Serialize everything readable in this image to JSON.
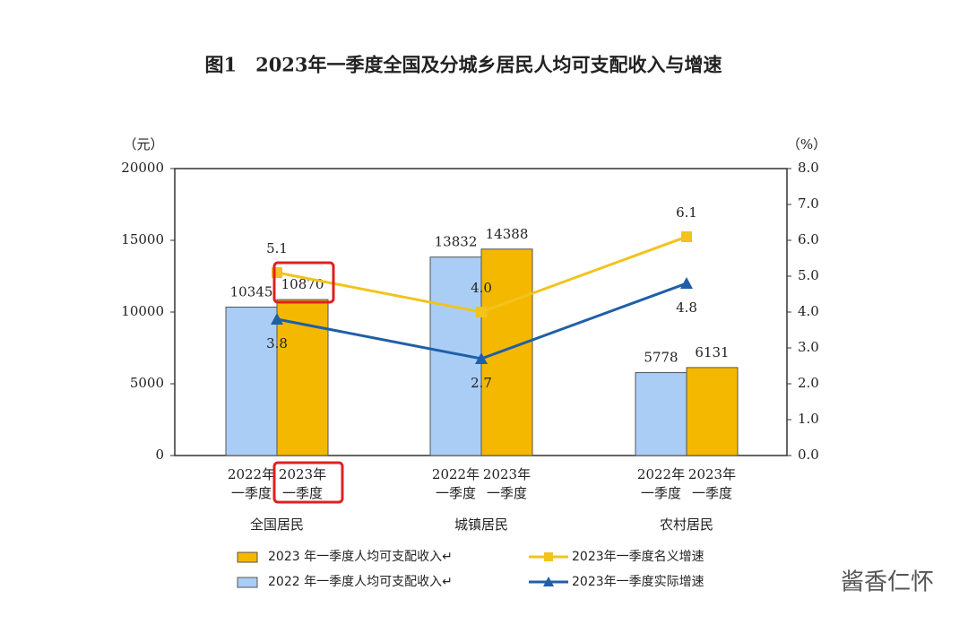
{
  "chart_data": {
    "type": "bar_line",
    "title": "图1　2023年一季度全国及分城乡居民人均可支配收入与增速",
    "y_label": "（元）",
    "y2_label": "（%）",
    "categories": [
      "全国居民",
      "城镇居民",
      "农村居民"
    ],
    "bar_labels": [
      [
        "2022年",
        "一季度"
      ],
      [
        "2023年",
        "一季度"
      ]
    ],
    "ylim": [
      0,
      20000
    ],
    "yticks": [
      0,
      5000,
      10000,
      15000,
      20000
    ],
    "y2lim": [
      0,
      8
    ],
    "y2ticks": [
      {
        "value": 0,
        "label": "0.0"
      },
      {
        "value": 1,
        "label": "1.0"
      },
      {
        "value": 2,
        "label": "2.0"
      },
      {
        "value": 3,
        "label": "3.0"
      },
      {
        "value": 4,
        "label": "4.0"
      },
      {
        "value": 5,
        "label": "5.0"
      },
      {
        "value": 6,
        "label": "6.0"
      },
      {
        "value": 7,
        "label": "7.0"
      },
      {
        "value": 8,
        "label": "8.0"
      }
    ],
    "series": [
      {
        "name": "2022 年一季度人均可支配收入↵",
        "kind": "bar",
        "color": "#a9cdf5",
        "values": [
          10345,
          13832,
          5778
        ]
      },
      {
        "name": "2023 年一季度人均可支配收入↵",
        "kind": "bar",
        "color": "#f5b800",
        "values": [
          10870,
          14388,
          6131
        ]
      },
      {
        "name": "2023年一季度名义增速",
        "kind": "line",
        "axis": "y2",
        "color": "#f2c31c",
        "marker": "square",
        "values": [
          5.1,
          4.0,
          6.1
        ],
        "value_labels": [
          "5.1",
          "4.0",
          "6.1"
        ]
      },
      {
        "name": "2023年一季度实际增速",
        "kind": "line",
        "axis": "y2",
        "color": "#1f5fa8",
        "marker": "triangle",
        "values": [
          3.8,
          2.7,
          4.8
        ],
        "value_labels": [
          "3.8",
          "2.7",
          "4.8"
        ]
      }
    ],
    "watermark": "酱香仁怀"
  }
}
